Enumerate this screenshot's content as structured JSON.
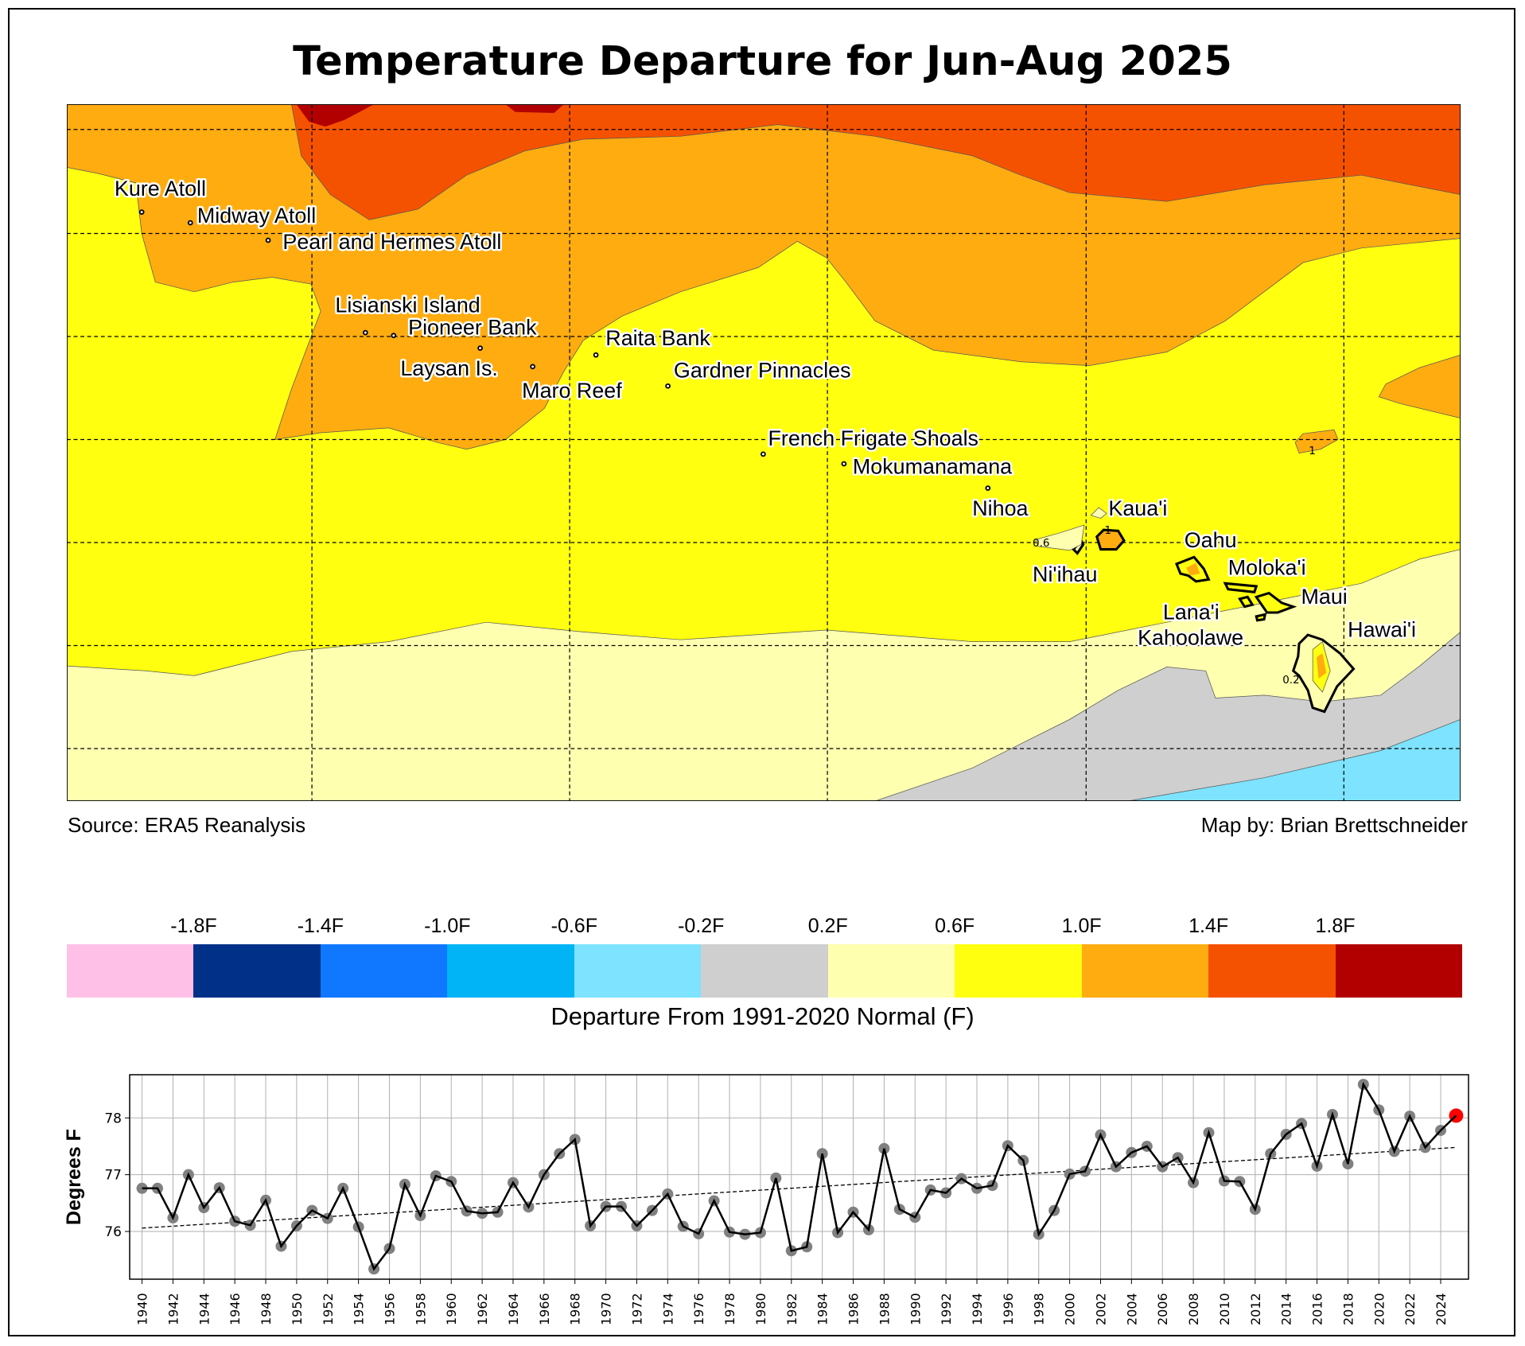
{
  "title": "Temperature Departure for Jun-Aug 2025",
  "map": {
    "labels": [
      "Kure Atoll",
      "Midway Atoll",
      "Pearl and Hermes Atoll",
      "Lisianski Island",
      "Pioneer Bank",
      "Laysan Is.",
      "Raita Bank",
      "Gardner Pinnacles",
      "Maro Reef",
      "French Frigate Shoals",
      "Mokumanamana",
      "Nihoa",
      "Kaua'i",
      "Ni'ihau",
      "Oahu",
      "Moloka'i",
      "Maui",
      "Lana'i",
      "Kahoolawe",
      "Hawai'i"
    ],
    "contour_labels": [
      "0.6",
      "1",
      "0.2",
      "1"
    ],
    "colors": {
      "pink": "#FFC0E8",
      "navy": "#003087",
      "blue": "#0F78FF",
      "cyan": "#00B4F6",
      "lightblue": "#7DE3FF",
      "gray": "#CFCFCF",
      "paleyellow": "#FFFFB0",
      "yellow": "#FFFF10",
      "orange": "#FFAC10",
      "redorange": "#F55200",
      "darkred": "#B20000"
    }
  },
  "source": "Source: ERA5 Reanalysis",
  "credit": "Map by: Brian Brettschneider",
  "colorbar": {
    "colors": [
      "#FFC0E8",
      "#003087",
      "#0F78FF",
      "#00B4F6",
      "#7DE3FF",
      "#CFCFCF",
      "#FFFFB0",
      "#FFFF10",
      "#FFAC10",
      "#F55200",
      "#B20000"
    ],
    "ticks": [
      "-1.8F",
      "-1.4F",
      "-1.0F",
      "-0.6F",
      "-0.2F",
      "0.2F",
      "0.6F",
      "1.0F",
      "1.4F",
      "1.8F"
    ],
    "label": "Departure From 1991-2020 Normal (F)"
  },
  "chart_data": {
    "type": "line",
    "title": "",
    "xlabel": "",
    "ylabel": "Degrees F",
    "x": [
      1940,
      1941,
      1942,
      1943,
      1944,
      1945,
      1946,
      1947,
      1948,
      1949,
      1950,
      1951,
      1952,
      1953,
      1954,
      1955,
      1956,
      1957,
      1958,
      1959,
      1960,
      1961,
      1962,
      1963,
      1964,
      1965,
      1966,
      1967,
      1968,
      1969,
      1970,
      1971,
      1972,
      1973,
      1974,
      1975,
      1976,
      1977,
      1978,
      1979,
      1980,
      1981,
      1982,
      1983,
      1984,
      1985,
      1986,
      1987,
      1988,
      1989,
      1990,
      1991,
      1992,
      1993,
      1994,
      1995,
      1996,
      1997,
      1998,
      1999,
      2000,
      2001,
      2002,
      2003,
      2004,
      2005,
      2006,
      2007,
      2008,
      2009,
      2010,
      2011,
      2012,
      2013,
      2014,
      2015,
      2016,
      2017,
      2018,
      2019,
      2020,
      2021,
      2022,
      2023,
      2024,
      2025
    ],
    "values": [
      76.76,
      76.76,
      76.24,
      77.0,
      76.42,
      76.77,
      76.18,
      76.11,
      76.55,
      75.74,
      76.1,
      76.37,
      76.23,
      76.76,
      76.08,
      75.34,
      75.7,
      76.83,
      76.28,
      76.98,
      76.88,
      76.36,
      76.32,
      76.34,
      76.86,
      76.43,
      77.0,
      77.37,
      77.62,
      76.1,
      76.44,
      76.44,
      76.1,
      76.37,
      76.66,
      76.09,
      75.96,
      76.54,
      75.99,
      75.95,
      75.98,
      76.94,
      75.66,
      75.73,
      77.37,
      75.98,
      76.34,
      76.03,
      77.46,
      76.39,
      76.25,
      76.73,
      76.68,
      76.93,
      76.76,
      76.81,
      77.51,
      77.25,
      75.95,
      76.37,
      77.01,
      77.06,
      77.7,
      77.14,
      77.39,
      77.5,
      77.14,
      77.3,
      76.86,
      77.74,
      76.89,
      76.88,
      76.39,
      77.37,
      77.71,
      77.9,
      77.15,
      78.06,
      77.19,
      78.59,
      78.14,
      77.41,
      78.03,
      77.48,
      77.78,
      78.04
    ],
    "trend": {
      "x": [
        1940,
        2025
      ],
      "y": [
        76.06,
        77.48
      ]
    },
    "highlight_year": 2025,
    "highlight_color": "#FF0000",
    "point_color": "#808080",
    "ylim": [
      75.16,
      78.76
    ],
    "xlim": [
      1939.2,
      2025.8
    ],
    "yticks": [
      76,
      77,
      78
    ],
    "xtick_step": 2,
    "grid": true
  }
}
